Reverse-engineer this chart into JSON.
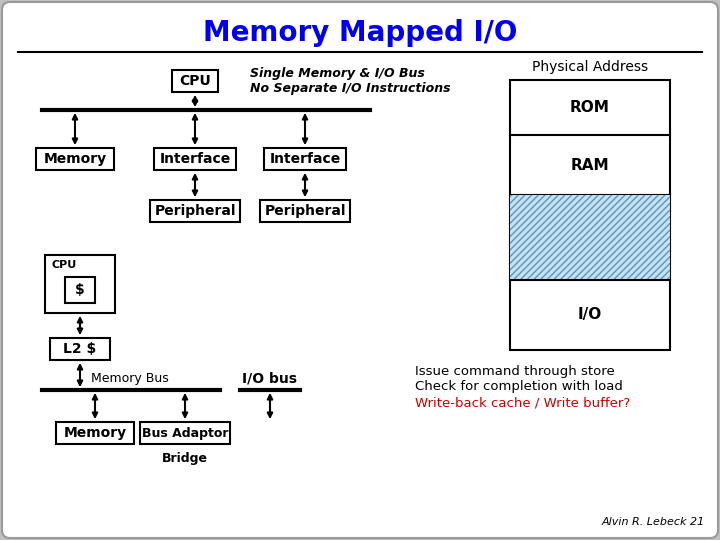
{
  "title": "Memory Mapped I/O",
  "title_color": "#0000EE",
  "bg_color": "#C0C0C0",
  "inner_bg": "#FFFFFF",
  "subtitle_italic": "Single Memory & I/O Bus\nNo Separate I/O Instructions",
  "physical_address_label": "Physical Address",
  "rom_label": "ROM",
  "ram_label": "RAM",
  "io_label": "I/O",
  "cpu_label": "CPU",
  "cache_label": "$",
  "l2_label": "L2 $",
  "memory_label": "Memory",
  "interface1_label": "Interface",
  "interface2_label": "Interface",
  "peripheral1_label": "Peripheral",
  "peripheral2_label": "Peripheral",
  "memory_bus_label": "Memory Bus",
  "io_bus_label": "I/O bus",
  "bus_adaptor_label": "Bus Adaptor",
  "bridge_label": "Bridge",
  "memory2_label": "Memory",
  "issue_text": "Issue command through store\nCheck for completion with load",
  "writeback_text": "Write-back cache / Write buffer?",
  "writeback_color": "#CC0000",
  "author_text": "Alvin R. Lebeck 21",
  "hatch_color": "#ADD8E6"
}
